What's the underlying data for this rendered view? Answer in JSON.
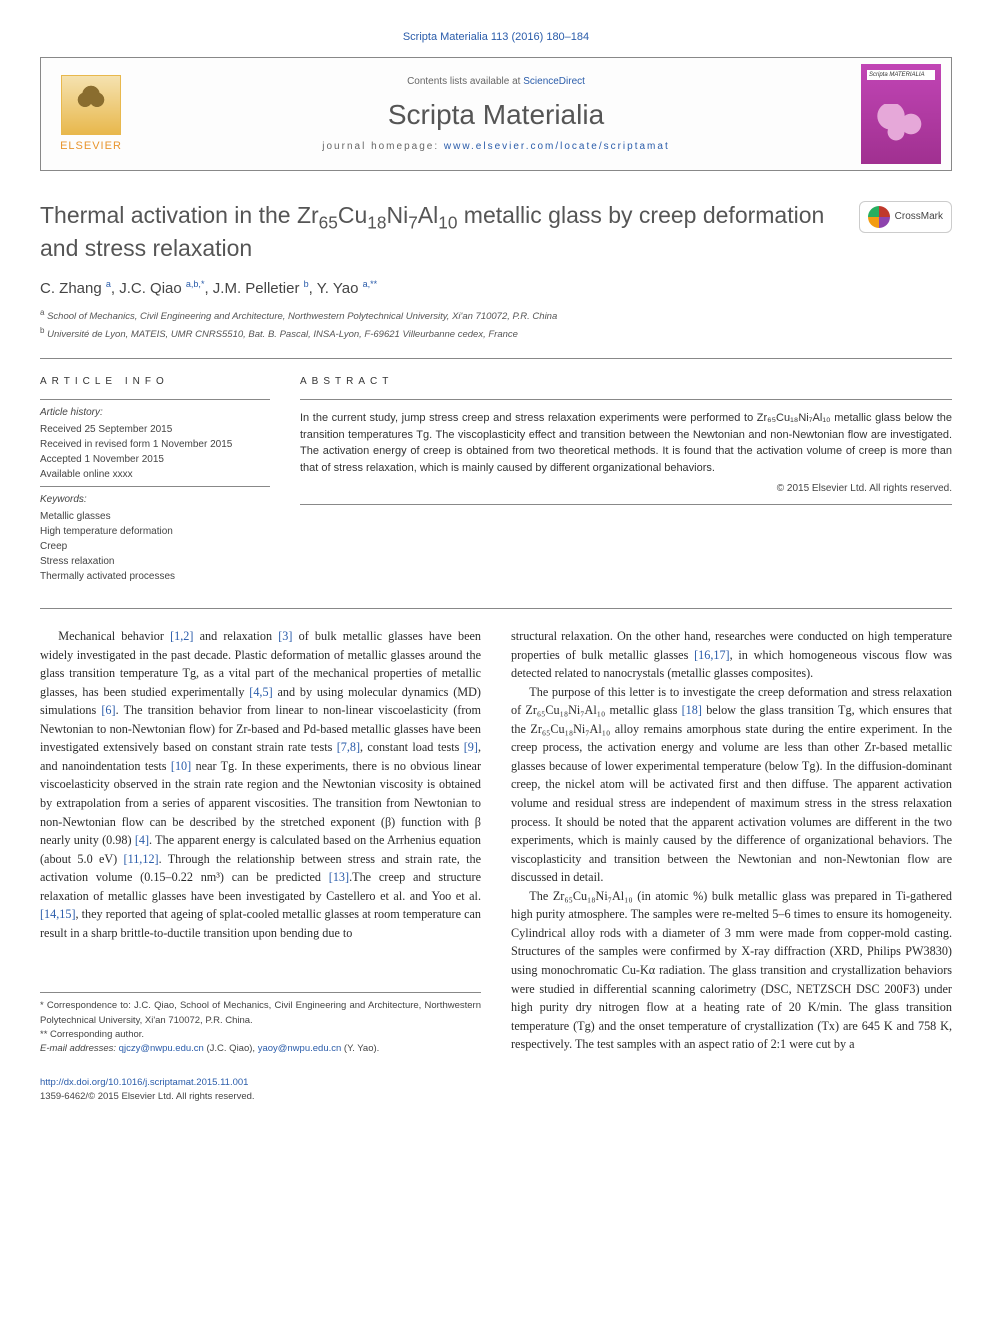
{
  "header": {
    "citation": "Scripta Materialia 113 (2016) 180–184",
    "contents_text": "Contents lists available at ",
    "contents_link": "ScienceDirect",
    "journal_name": "Scripta Materialia",
    "homepage_label": "journal homepage: ",
    "homepage_url": "www.elsevier.com/locate/scriptamat",
    "publisher": "ELSEVIER",
    "cover_label": "Scripta MATERIALIA"
  },
  "crossmark": {
    "label": "CrossMark"
  },
  "title": "Thermal activation in the Zr₆₅Cu₁₈Ni₇Al₁₀ metallic glass by creep deformation and stress relaxation",
  "authors_html": "C. Zhang ᵃ, J.C. Qiao ᵃ,ᵇ,*, J.M. Pelletier ᵇ, Y. Yao ᵃ,**",
  "affiliations": {
    "a": "School of Mechanics, Civil Engineering and Architecture, Northwestern Polytechnical University, Xi'an 710072, P.R. China",
    "b": "Université de Lyon, MATEIS, UMR CNRS5510, Bat. B. Pascal, INSA-Lyon, F-69621 Villeurbanne cedex, France"
  },
  "article_info": {
    "heading": "ARTICLE INFO",
    "history_label": "Article history:",
    "history": [
      "Received 25 September 2015",
      "Received in revised form 1 November 2015",
      "Accepted 1 November 2015",
      "Available online xxxx"
    ],
    "keywords_label": "Keywords:",
    "keywords": [
      "Metallic glasses",
      "High temperature deformation",
      "Creep",
      "Stress relaxation",
      "Thermally activated processes"
    ]
  },
  "abstract": {
    "heading": "ABSTRACT",
    "text": "In the current study, jump stress creep and stress relaxation experiments were performed to Zr₆₅Cu₁₈Ni₇Al₁₀ metallic glass below the transition temperatures Tg. The viscoplasticity effect and transition between the Newtonian and non-Newtonian flow are investigated. The activation energy of creep is obtained from two theoretical methods. It is found that the activation volume of creep is more than that of stress relaxation, which is mainly caused by different organizational behaviors.",
    "copyright": "© 2015 Elsevier Ltd. All rights reserved."
  },
  "body": {
    "col1": {
      "p1_a": "Mechanical behavior ",
      "p1_ref1": "[1,2]",
      "p1_b": " and relaxation ",
      "p1_ref2": "[3]",
      "p1_c": " of bulk metallic glasses have been widely investigated in the past decade. Plastic deformation of metallic glasses around the glass transition temperature Tg, as a vital part of the mechanical properties of metallic glasses, has been studied experimentally ",
      "p1_ref3": "[4,5]",
      "p1_d": " and by using molecular dynamics (MD) simulations ",
      "p1_ref4": "[6]",
      "p1_e": ". The transition behavior from linear to non-linear viscoelasticity (from Newtonian to non-Newtonian flow) for Zr-based and Pd-based metallic glasses have been investigated extensively based on constant strain rate tests ",
      "p1_ref5": "[7,8]",
      "p1_f": ", constant load tests ",
      "p1_ref6": "[9]",
      "p1_g": ", and nanoindentation tests ",
      "p1_ref7": "[10]",
      "p1_h": " near Tg. In these experiments, there is no obvious linear viscoelasticity observed in the strain rate region and the Newtonian viscosity is obtained by extrapolation from a series of apparent viscosities. The transition from Newtonian to non-Newtonian flow can be described by the stretched exponent (β) function with β nearly unity (0.98) ",
      "p1_ref8": "[4]",
      "p1_i": ". The apparent energy is calculated based on the Arrhenius equation (about 5.0 eV) ",
      "p1_ref9": "[11,12]",
      "p1_j": ". Through the relationship between stress and strain rate, the activation volume (0.15–0.22 nm³) can be predicted ",
      "p1_ref10": "[13]",
      "p1_k": ".The creep and structure relaxation of metallic glasses have been investigated by Castellero et al. and Yoo et al. ",
      "p1_ref11": "[14,15]",
      "p1_l": ", they reported that ageing of splat-cooled metallic glasses at room temperature can result in a sharp brittle-to-ductile transition upon bending due to"
    },
    "col2": {
      "p1_a": "structural relaxation. On the other hand, researches were conducted on high temperature properties of bulk metallic glasses ",
      "p1_ref1": "[16,17]",
      "p1_b": ", in which homogeneous viscous flow was detected related to nanocrystals (metallic glasses composites).",
      "p2_a": "The purpose of this letter is to investigate the creep deformation and stress relaxation of Zr₆₅Cu₁₈Ni₇Al₁₀ metallic glass ",
      "p2_ref1": "[18]",
      "p2_b": " below the glass transition Tg, which ensures that the Zr₆₅Cu₁₈Ni₇Al₁₀ alloy remains amorphous state during the entire experiment. In the creep process, the activation energy and volume are less than other Zr-based metallic glasses because of lower experimental temperature (below Tg). In the diffusion-dominant creep, the nickel atom will be activated first and then diffuse. The apparent activation volume and residual stress are independent of maximum stress in the stress relaxation process. It should be noted that the apparent activation volumes are different in the two experiments, which is mainly caused by the difference of organizational behaviors. The viscoplasticity and transition between the Newtonian and non-Newtonian flow are discussed in detail.",
      "p3": "The Zr₆₅Cu₁₈Ni₇Al₁₀ (in atomic %) bulk metallic glass was prepared in Ti-gathered high purity atmosphere. The samples were re-melted 5–6 times to ensure its homogeneity. Cylindrical alloy rods with a diameter of 3 mm were made from copper-mold casting. Structures of the samples were confirmed by X-ray diffraction (XRD, Philips PW3830) using monochromatic Cu-Kα radiation. The glass transition and crystallization behaviors were studied in differential scanning calorimetry (DSC, NETZSCH DSC 200F3) under high purity dry nitrogen flow at a heating rate of 20 K/min. The glass transition temperature (Tg) and the onset temperature of crystallization (Tx) are 645 K and 758 K, respectively. The test samples with an aspect ratio of 2:1 were cut by a"
    }
  },
  "footnotes": {
    "corr1": "* Correspondence to: J.C. Qiao, School of Mechanics, Civil Engineering and Architecture, Northwestern Polytechnical University, Xi'an 710072, P.R. China.",
    "corr2": "** Corresponding author.",
    "email_label": "E-mail addresses: ",
    "email1": "qjczy@nwpu.edu.cn",
    "email1_name": " (J.C. Qiao), ",
    "email2": "yaoy@nwpu.edu.cn",
    "email2_name": " (Y. Yao)."
  },
  "footer": {
    "doi": "http://dx.doi.org/10.1016/j.scriptamat.2015.11.001",
    "issn": "1359-6462/© 2015 Elsevier Ltd. All rights reserved."
  },
  "colors": {
    "link": "#2a5caa",
    "text": "#333333",
    "elsevier_orange": "#e8952e",
    "cover_magenta": "#c145b5"
  }
}
